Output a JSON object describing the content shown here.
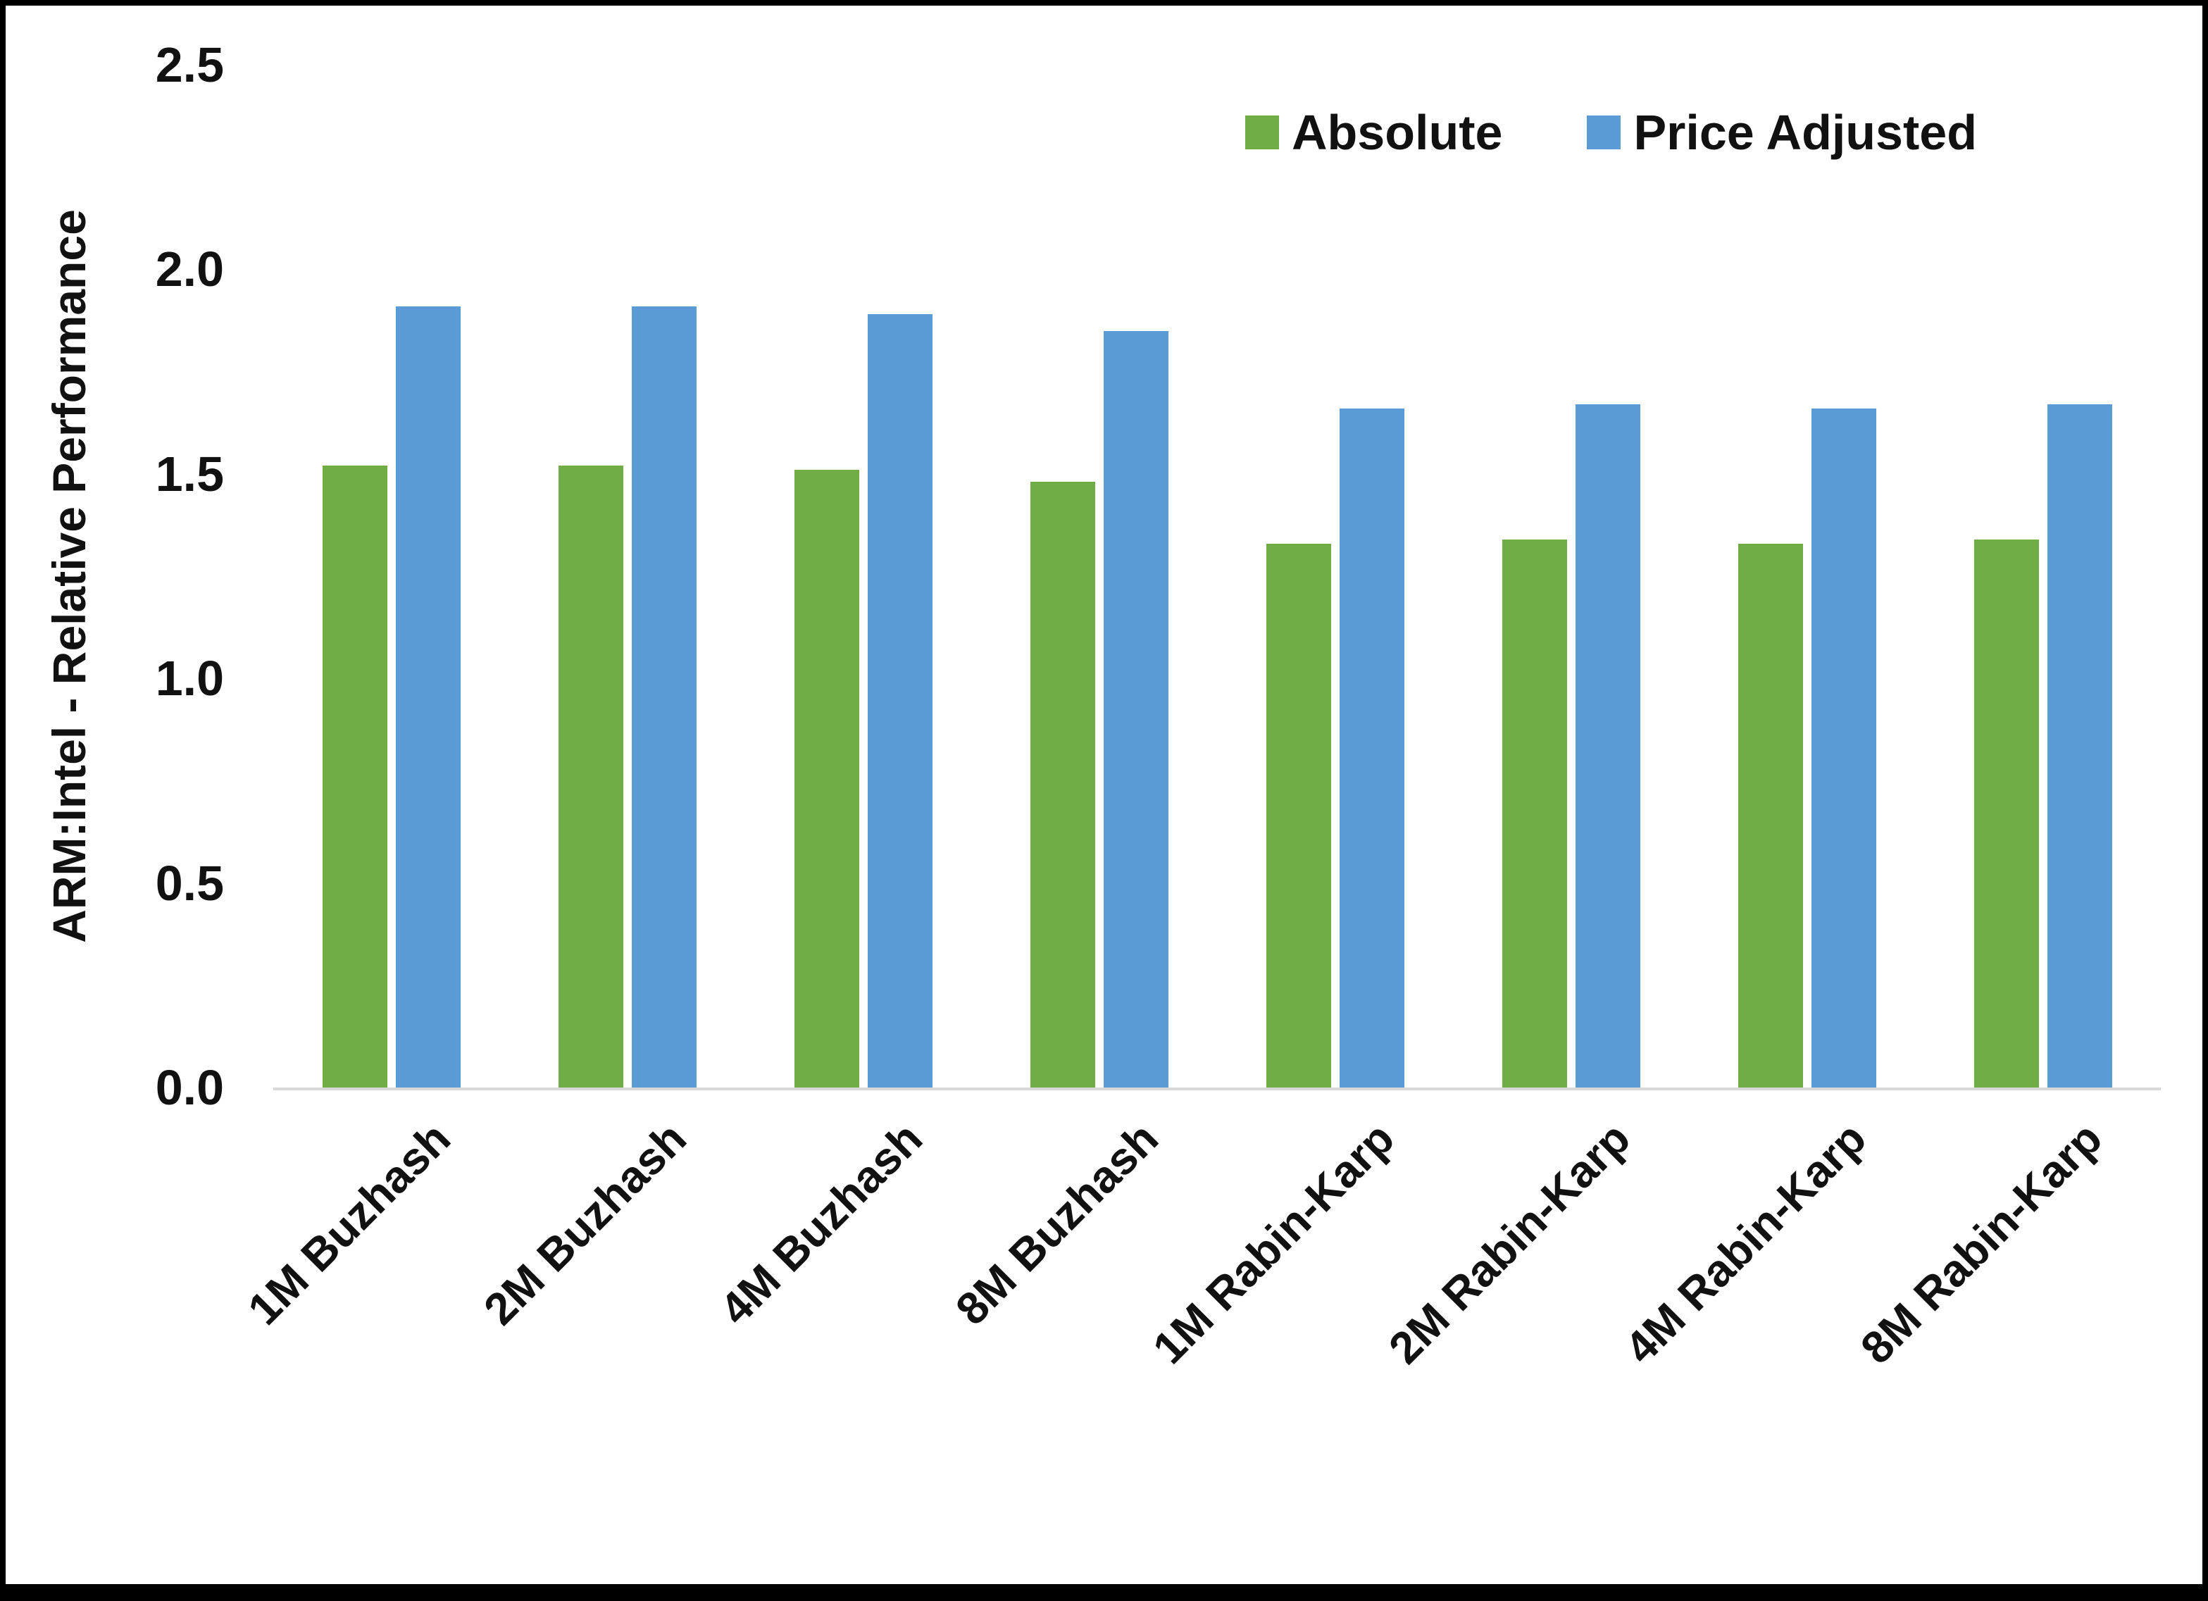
{
  "chart_data": {
    "type": "bar",
    "title": "",
    "xlabel": "",
    "ylabel": "ARM:Intel - Relative Performance",
    "ylim": [
      0,
      2.5
    ],
    "yticks": [
      0.0,
      0.5,
      1.0,
      1.5,
      2.0,
      2.5
    ],
    "ytick_labels": [
      "0.0",
      "0.5",
      "1.0",
      "1.5",
      "2.0",
      "2.5"
    ],
    "grid": false,
    "legend_position": "top-right-inside",
    "categories": [
      "1M Buzhash",
      "2M Buzhash",
      "4M Buzhash",
      "8M Buzhash",
      "1M Rabin-Karp",
      "2M Rabin-Karp",
      "4M Rabin-Karp",
      "8M Rabin-Karp"
    ],
    "series": [
      {
        "name": "Absolute",
        "color": "#70AD47",
        "values": [
          1.52,
          1.52,
          1.51,
          1.48,
          1.33,
          1.34,
          1.33,
          1.34
        ]
      },
      {
        "name": "Price Adjusted",
        "color": "#5B9BD5",
        "values": [
          1.91,
          1.91,
          1.89,
          1.85,
          1.66,
          1.67,
          1.66,
          1.67
        ]
      }
    ],
    "axis_baseline_color": "#d9d9d9",
    "text_color": "#111111"
  }
}
